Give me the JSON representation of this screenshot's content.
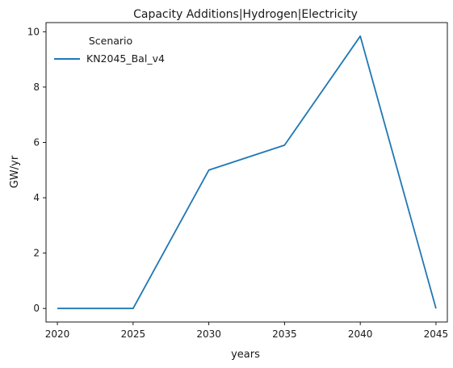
{
  "chart_data": {
    "type": "line",
    "title": "Capacity Additions|Hydrogen|Electricity",
    "xlabel": "years",
    "ylabel": "GW/yr",
    "x": [
      2020,
      2025,
      2030,
      2035,
      2040,
      2045
    ],
    "xticks": [
      "2020",
      "2025",
      "2030",
      "2035",
      "2040",
      "2045"
    ],
    "yticks": [
      "0",
      "2",
      "4",
      "6",
      "8",
      "10"
    ],
    "xlim": [
      2019.25,
      2045.75
    ],
    "ylim": [
      -0.49,
      10.33
    ],
    "grid": false,
    "legend": {
      "title": "Scenario",
      "position": "top-left"
    },
    "series": [
      {
        "name": "KN2045_Bal_v4",
        "color": "#1f77b4",
        "values": [
          0,
          0,
          5.0,
          5.9,
          9.84,
          0
        ]
      }
    ]
  }
}
